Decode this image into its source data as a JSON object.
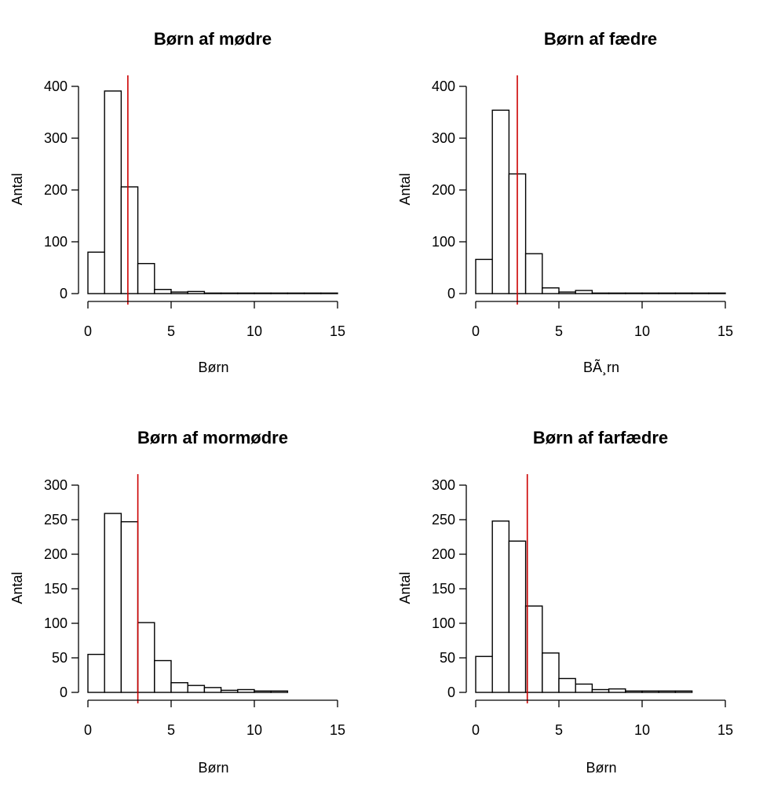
{
  "chart_data": [
    {
      "type": "bar",
      "title": "Børn af  mødre",
      "xlabel": "Børn",
      "ylabel": "Antal",
      "bin_edges": [
        0,
        1,
        2,
        3,
        4,
        5,
        6,
        7,
        8,
        9,
        10,
        11,
        12,
        13,
        14,
        15
      ],
      "values": [
        80,
        391,
        206,
        58,
        8,
        3,
        4,
        1,
        1,
        1,
        1,
        1,
        1,
        1,
        1
      ],
      "xlim": [
        0,
        15
      ],
      "ylim": [
        0,
        400
      ],
      "xticks": [
        "0",
        "5",
        "10",
        "15"
      ],
      "yticks": [
        "0",
        "100",
        "200",
        "300",
        "400"
      ],
      "vline": {
        "x": 2.4,
        "color": "#cc0000"
      }
    },
    {
      "type": "bar",
      "title": "Børn af  fædre",
      "xlabel": "BÃ¸rn",
      "ylabel": "Antal",
      "bin_edges": [
        0,
        1,
        2,
        3,
        4,
        5,
        6,
        7,
        8,
        9,
        10,
        11,
        12,
        13,
        14,
        15
      ],
      "values": [
        66,
        354,
        231,
        77,
        11,
        3,
        6,
        1,
        1,
        1,
        1,
        1,
        1,
        1,
        1
      ],
      "xlim": [
        0,
        15
      ],
      "ylim": [
        0,
        400
      ],
      "xticks": [
        "0",
        "5",
        "10",
        "15"
      ],
      "yticks": [
        "0",
        "100",
        "200",
        "300",
        "400"
      ],
      "vline": {
        "x": 2.5,
        "color": "#cc0000"
      }
    },
    {
      "type": "bar",
      "title": "Børn af  mormødre",
      "xlabel": "Børn",
      "ylabel": "Antal",
      "bin_edges": [
        0,
        1,
        2,
        3,
        4,
        5,
        6,
        7,
        8,
        9,
        10,
        11,
        12,
        13,
        14,
        15
      ],
      "values": [
        55,
        259,
        247,
        101,
        46,
        14,
        10,
        7,
        3,
        4,
        2,
        2,
        0,
        0,
        0
      ],
      "xlim": [
        0,
        15
      ],
      "ylim": [
        0,
        300
      ],
      "xticks": [
        "0",
        "5",
        "10",
        "15"
      ],
      "yticks": [
        "0",
        "50",
        "100",
        "150",
        "200",
        "250",
        "300"
      ],
      "vline": {
        "x": 3.0,
        "color": "#cc0000"
      }
    },
    {
      "type": "bar",
      "title": "Børn af  farfædre",
      "xlabel": "Børn",
      "ylabel": "Antal",
      "bin_edges": [
        0,
        1,
        2,
        3,
        4,
        5,
        6,
        7,
        8,
        9,
        10,
        11,
        12,
        13,
        14,
        15
      ],
      "values": [
        52,
        248,
        219,
        125,
        57,
        20,
        12,
        4,
        5,
        2,
        2,
        2,
        2,
        0,
        0
      ],
      "xlim": [
        0,
        15
      ],
      "ylim": [
        0,
        300
      ],
      "xticks": [
        "0",
        "5",
        "10",
        "15"
      ],
      "yticks": [
        "0",
        "50",
        "100",
        "150",
        "200",
        "250",
        "300"
      ],
      "vline": {
        "x": 3.1,
        "color": "#cc0000"
      }
    }
  ]
}
